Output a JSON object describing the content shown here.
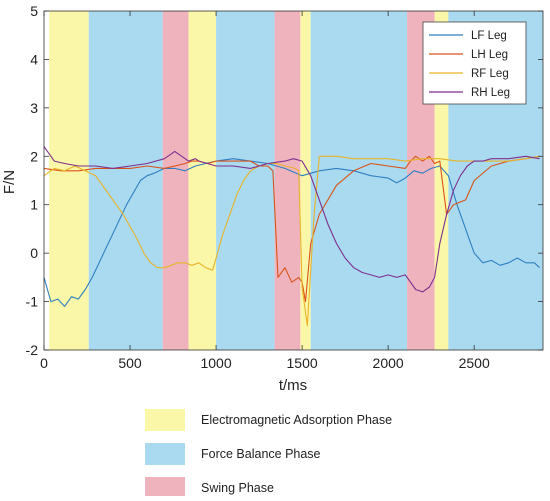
{
  "chart_data": {
    "type": "line",
    "title": "",
    "xlabel": "t/ms",
    "ylabel": "F/N",
    "xlim": [
      0,
      2900
    ],
    "ylim": [
      -2,
      5
    ],
    "xticks": [
      0,
      500,
      1000,
      1500,
      2000,
      2500
    ],
    "yticks": [
      -2,
      -1,
      0,
      1,
      2,
      3,
      4,
      5
    ],
    "grid": false,
    "legend_position": "top-right",
    "phase_colors": {
      "Electromagnetic Adsorption Phase": "#fbf7a8",
      "Force Balance Phase": "#a9daf0",
      "Swing Phase": "#eeb3bd"
    },
    "phases": [
      {
        "phase": "Electromagnetic Adsorption Phase",
        "start": 30,
        "end": 260
      },
      {
        "phase": "Force Balance Phase",
        "start": 260,
        "end": 690
      },
      {
        "phase": "Swing Phase",
        "start": 690,
        "end": 840
      },
      {
        "phase": "Electromagnetic Adsorption Phase",
        "start": 840,
        "end": 1000
      },
      {
        "phase": "Force Balance Phase",
        "start": 1000,
        "end": 1340
      },
      {
        "phase": "Swing Phase",
        "start": 1340,
        "end": 1490
      },
      {
        "phase": "Electromagnetic Adsorption Phase",
        "start": 1490,
        "end": 1550
      },
      {
        "phase": "Force Balance Phase",
        "start": 1550,
        "end": 2110
      },
      {
        "phase": "Swing Phase",
        "start": 2110,
        "end": 2270
      },
      {
        "phase": "Electromagnetic Adsorption Phase",
        "start": 2270,
        "end": 2350
      },
      {
        "phase": "Force Balance Phase",
        "start": 2350,
        "end": 2900
      }
    ],
    "series": [
      {
        "name": "LF Leg",
        "color": "#2f7fc1",
        "x": [
          0,
          40,
          80,
          120,
          160,
          200,
          240,
          280,
          320,
          360,
          400,
          440,
          480,
          520,
          560,
          600,
          640,
          700,
          760,
          820,
          880,
          940,
          1000,
          1100,
          1200,
          1300,
          1400,
          1500,
          1600,
          1700,
          1800,
          1900,
          2000,
          2050,
          2100,
          2150,
          2200,
          2250,
          2300,
          2350,
          2400,
          2450,
          2500,
          2550,
          2600,
          2650,
          2700,
          2750,
          2800,
          2850,
          2880
        ],
        "values": [
          -0.5,
          -1.0,
          -0.95,
          -1.1,
          -0.9,
          -0.95,
          -0.75,
          -0.5,
          -0.2,
          0.1,
          0.4,
          0.7,
          1.0,
          1.25,
          1.5,
          1.6,
          1.65,
          1.75,
          1.75,
          1.7,
          1.8,
          1.85,
          1.9,
          1.95,
          1.9,
          1.85,
          1.75,
          1.6,
          1.7,
          1.75,
          1.7,
          1.6,
          1.55,
          1.45,
          1.55,
          1.7,
          1.65,
          1.75,
          1.8,
          1.6,
          1.0,
          0.5,
          0.0,
          -0.2,
          -0.15,
          -0.25,
          -0.2,
          -0.1,
          -0.2,
          -0.2,
          -0.3
        ]
      },
      {
        "name": "LH Leg",
        "color": "#d95319",
        "x": [
          0,
          100,
          200,
          300,
          400,
          500,
          600,
          700,
          760,
          820,
          860,
          900,
          950,
          1000,
          1050,
          1100,
          1150,
          1200,
          1250,
          1300,
          1330,
          1360,
          1400,
          1440,
          1480,
          1500,
          1520,
          1550,
          1600,
          1700,
          1800,
          1900,
          2000,
          2100,
          2130,
          2160,
          2200,
          2240,
          2270,
          2300,
          2340,
          2380,
          2450,
          2500,
          2600,
          2700,
          2800,
          2880
        ],
        "values": [
          1.75,
          1.7,
          1.7,
          1.75,
          1.75,
          1.75,
          1.8,
          1.75,
          1.8,
          1.85,
          1.9,
          1.9,
          1.85,
          1.9,
          1.9,
          1.9,
          1.9,
          1.9,
          1.8,
          1.8,
          1.7,
          -0.5,
          -0.3,
          -0.6,
          -0.5,
          -0.6,
          -1.0,
          0.2,
          0.8,
          1.4,
          1.7,
          1.85,
          1.8,
          1.75,
          1.9,
          2.0,
          1.9,
          2.0,
          1.85,
          1.9,
          0.8,
          1.0,
          1.1,
          1.5,
          1.8,
          1.9,
          1.95,
          2.0
        ]
      },
      {
        "name": "RF Leg",
        "color": "#e8b42a",
        "x": [
          0,
          60,
          120,
          180,
          240,
          300,
          340,
          380,
          420,
          460,
          500,
          540,
          580,
          620,
          660,
          700,
          740,
          780,
          820,
          860,
          900,
          940,
          980,
          1000,
          1040,
          1080,
          1120,
          1160,
          1200,
          1250,
          1300,
          1350,
          1400,
          1460,
          1480,
          1500,
          1530,
          1570,
          1600,
          1700,
          1800,
          1900,
          2000,
          2100,
          2200,
          2300,
          2400,
          2500,
          2600,
          2700,
          2800,
          2880
        ],
        "values": [
          1.6,
          1.75,
          1.7,
          1.8,
          1.7,
          1.6,
          1.4,
          1.2,
          1.0,
          0.8,
          0.55,
          0.3,
          0.0,
          -0.2,
          -0.3,
          -0.3,
          -0.25,
          -0.2,
          -0.2,
          -0.25,
          -0.2,
          -0.3,
          -0.35,
          -0.1,
          0.4,
          0.8,
          1.2,
          1.5,
          1.7,
          1.8,
          1.85,
          1.85,
          1.8,
          1.75,
          1.7,
          -0.7,
          -1.5,
          0.8,
          2.0,
          2.0,
          1.95,
          1.95,
          1.95,
          1.9,
          1.95,
          1.95,
          1.9,
          1.9,
          1.9,
          1.9,
          1.95,
          2.0
        ]
      },
      {
        "name": "RH Leg",
        "color": "#7e2f8e",
        "x": [
          0,
          60,
          120,
          200,
          300,
          400,
          500,
          600,
          700,
          760,
          800,
          840,
          880,
          900,
          950,
          1000,
          1100,
          1200,
          1300,
          1400,
          1450,
          1500,
          1550,
          1600,
          1650,
          1700,
          1750,
          1800,
          1850,
          1900,
          1950,
          2000,
          2050,
          2100,
          2130,
          2160,
          2200,
          2240,
          2270,
          2300,
          2340,
          2380,
          2420,
          2460,
          2500,
          2550,
          2600,
          2700,
          2800,
          2880
        ],
        "values": [
          2.2,
          1.9,
          1.85,
          1.8,
          1.8,
          1.75,
          1.8,
          1.85,
          1.95,
          2.1,
          2.0,
          1.9,
          1.95,
          1.9,
          1.85,
          1.8,
          1.8,
          1.75,
          1.85,
          1.9,
          1.95,
          1.9,
          1.6,
          1.1,
          0.6,
          0.2,
          -0.1,
          -0.3,
          -0.4,
          -0.45,
          -0.5,
          -0.45,
          -0.5,
          -0.45,
          -0.6,
          -0.75,
          -0.8,
          -0.7,
          -0.5,
          0.2,
          0.8,
          1.3,
          1.6,
          1.8,
          1.9,
          1.9,
          1.95,
          1.95,
          2.0,
          1.95
        ]
      }
    ]
  },
  "legend_title": "",
  "phase_legend": [
    {
      "label": "Electromagnetic Adsorption Phase",
      "color": "#fbf7a8"
    },
    {
      "label": "Force Balance Phase",
      "color": "#a9daf0"
    },
    {
      "label": "Swing Phase",
      "color": "#eeb3bd"
    }
  ]
}
